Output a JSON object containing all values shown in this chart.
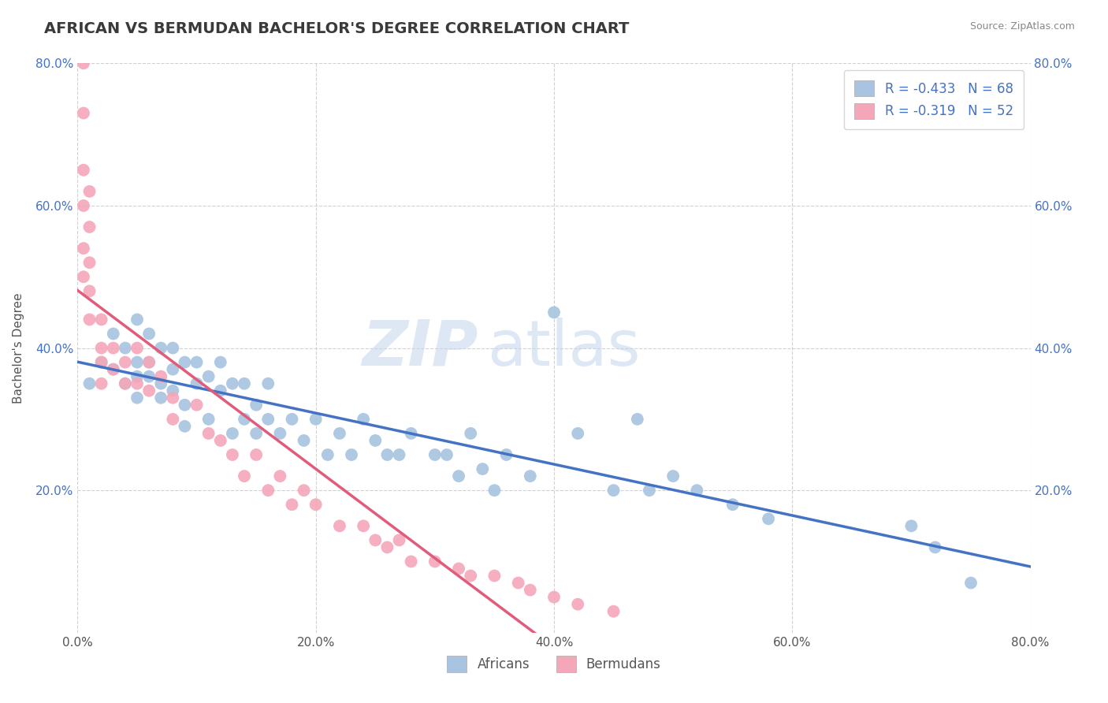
{
  "title": "AFRICAN VS BERMUDAN BACHELOR'S DEGREE CORRELATION CHART",
  "source_text": "Source: ZipAtlas.com",
  "ylabel": "Bachelor's Degree",
  "xlim": [
    0.0,
    0.8
  ],
  "ylim": [
    0.0,
    0.8
  ],
  "xticks": [
    0.0,
    0.2,
    0.4,
    0.6,
    0.8
  ],
  "yticks": [
    0.2,
    0.4,
    0.6,
    0.8
  ],
  "xticklabels": [
    "0.0%",
    "20.0%",
    "40.0%",
    "60.0%",
    "80.0%"
  ],
  "yticklabels": [
    "20.0%",
    "40.0%",
    "60.0%",
    "80.0%"
  ],
  "background_color": "#ffffff",
  "grid_color": "#cccccc",
  "watermark_zip": "ZIP",
  "watermark_atlas": "atlas",
  "africans_x": [
    0.01,
    0.02,
    0.03,
    0.03,
    0.04,
    0.04,
    0.05,
    0.05,
    0.05,
    0.05,
    0.06,
    0.06,
    0.06,
    0.07,
    0.07,
    0.07,
    0.08,
    0.08,
    0.08,
    0.09,
    0.09,
    0.09,
    0.1,
    0.1,
    0.11,
    0.11,
    0.12,
    0.12,
    0.13,
    0.13,
    0.14,
    0.14,
    0.15,
    0.15,
    0.16,
    0.16,
    0.17,
    0.18,
    0.19,
    0.2,
    0.21,
    0.22,
    0.23,
    0.24,
    0.25,
    0.26,
    0.27,
    0.28,
    0.3,
    0.31,
    0.32,
    0.33,
    0.34,
    0.35,
    0.36,
    0.38,
    0.4,
    0.42,
    0.45,
    0.47,
    0.48,
    0.5,
    0.52,
    0.55,
    0.58,
    0.7,
    0.72,
    0.75
  ],
  "africans_y": [
    0.35,
    0.38,
    0.42,
    0.37,
    0.4,
    0.35,
    0.44,
    0.38,
    0.36,
    0.33,
    0.42,
    0.38,
    0.36,
    0.4,
    0.35,
    0.33,
    0.4,
    0.37,
    0.34,
    0.38,
    0.32,
    0.29,
    0.38,
    0.35,
    0.36,
    0.3,
    0.34,
    0.38,
    0.35,
    0.28,
    0.3,
    0.35,
    0.32,
    0.28,
    0.3,
    0.35,
    0.28,
    0.3,
    0.27,
    0.3,
    0.25,
    0.28,
    0.25,
    0.3,
    0.27,
    0.25,
    0.25,
    0.28,
    0.25,
    0.25,
    0.22,
    0.28,
    0.23,
    0.2,
    0.25,
    0.22,
    0.45,
    0.28,
    0.2,
    0.3,
    0.2,
    0.22,
    0.2,
    0.18,
    0.16,
    0.15,
    0.12,
    0.07
  ],
  "bermudans_x": [
    0.005,
    0.005,
    0.005,
    0.005,
    0.005,
    0.005,
    0.01,
    0.01,
    0.01,
    0.01,
    0.01,
    0.02,
    0.02,
    0.02,
    0.02,
    0.03,
    0.03,
    0.04,
    0.04,
    0.05,
    0.05,
    0.06,
    0.06,
    0.07,
    0.08,
    0.08,
    0.1,
    0.11,
    0.12,
    0.13,
    0.14,
    0.15,
    0.16,
    0.17,
    0.18,
    0.19,
    0.2,
    0.22,
    0.24,
    0.25,
    0.26,
    0.27,
    0.28,
    0.3,
    0.32,
    0.33,
    0.35,
    0.37,
    0.38,
    0.4,
    0.42,
    0.45
  ],
  "bermudans_y": [
    0.8,
    0.73,
    0.65,
    0.6,
    0.54,
    0.5,
    0.62,
    0.57,
    0.52,
    0.48,
    0.44,
    0.44,
    0.4,
    0.38,
    0.35,
    0.4,
    0.37,
    0.38,
    0.35,
    0.4,
    0.35,
    0.38,
    0.34,
    0.36,
    0.33,
    0.3,
    0.32,
    0.28,
    0.27,
    0.25,
    0.22,
    0.25,
    0.2,
    0.22,
    0.18,
    0.2,
    0.18,
    0.15,
    0.15,
    0.13,
    0.12,
    0.13,
    0.1,
    0.1,
    0.09,
    0.08,
    0.08,
    0.07,
    0.06,
    0.05,
    0.04,
    0.03
  ],
  "african_color": "#a8c4e0",
  "bermudan_color": "#f4a7b9",
  "african_line_color": "#4472c4",
  "bermudan_line_color": "#e05c7a",
  "legend_african_label": "R = -0.433   N = 68",
  "legend_bermudan_label": "R = -0.319   N = 52",
  "legend_africans_name": "Africans",
  "legend_bermudans_name": "Bermudans"
}
